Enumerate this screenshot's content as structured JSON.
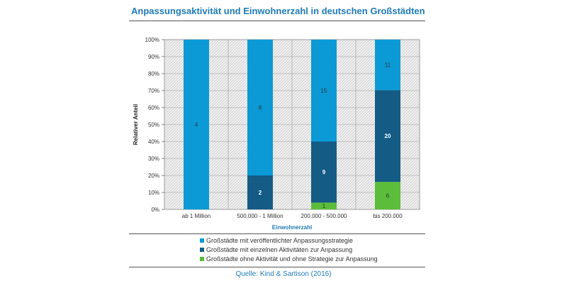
{
  "chart_data": {
    "type": "bar",
    "stacked": true,
    "normalized": true,
    "title": "Anpassungsaktivität und Einwohnerzahl in deutschen Großstädten",
    "xlabel": "Einwohnerzahl",
    "ylabel": "Relativer Anteil",
    "categories": [
      "ab 1 Million",
      "500.000 - 1 Million",
      "200.000 - 500.000",
      "bis 200.000"
    ],
    "series": [
      {
        "name": "Großstädte ohne Aktivität und ohne Strategie zur Anpassung",
        "color": "#5bbd3a",
        "label_color": "#333333",
        "values": [
          0,
          0,
          1,
          6
        ]
      },
      {
        "name": "Großstädte mit einzelnen Aktivitäten zur Anpassung",
        "color": "#145b86",
        "label_color": "#ffffff",
        "values": [
          0,
          2,
          9,
          20
        ]
      },
      {
        "name": "Großstädte mit veröffentlichter Anpassungsstrategie",
        "color": "#0b9ad6",
        "label_color": "#333333",
        "values": [
          4,
          8,
          15,
          11
        ]
      }
    ],
    "yticks": [
      "0%",
      "10%",
      "20%",
      "30%",
      "40%",
      "50%",
      "60%",
      "70%",
      "80%",
      "90%",
      "100%"
    ],
    "ylim": [
      0,
      100
    ],
    "legend": [
      {
        "label": "Großstädte mit veröffentlichter Anpassungsstrategie",
        "color": "#0b9ad6"
      },
      {
        "label": "Großstädte mit einzelnen Aktivitäten zur Anpassung",
        "color": "#145b86"
      },
      {
        "label": "Großstädte ohne Aktivität und ohne Strategie zur Anpassung",
        "color": "#5bbd3a"
      }
    ],
    "source": "Quelle: Kind & Sartison (2016)"
  }
}
